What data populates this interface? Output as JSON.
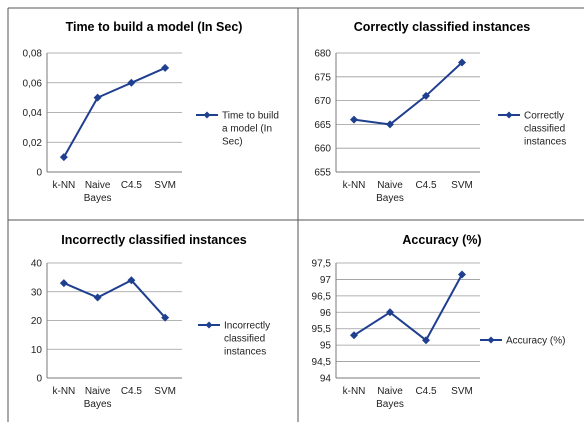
{
  "chart_data": [
    {
      "type": "line",
      "title": "Time to build a model (In Sec)",
      "categories": [
        "k-NN",
        "Naive\nBayes",
        "C4.5",
        "SVM"
      ],
      "series": [
        {
          "name": "Time to build a model (In Sec)",
          "values": [
            0.01,
            0.05,
            0.06,
            0.07
          ]
        }
      ],
      "ylim": [
        0,
        0.08
      ],
      "yticks": [
        "0",
        "0,02",
        "0,04",
        "0,06",
        "0,08"
      ],
      "legend_lines": [
        "Time to build",
        "a model (In",
        "Sec)"
      ],
      "grid": true,
      "legend": "right",
      "color": "#1f3f8f"
    },
    {
      "type": "line",
      "title": "Correctly classified instances",
      "categories": [
        "k-NN",
        "Naive\nBayes",
        "C4.5",
        "SVM"
      ],
      "series": [
        {
          "name": "Correctly classified instances",
          "values": [
            666,
            665,
            671,
            678
          ]
        }
      ],
      "ylim": [
        655,
        680
      ],
      "yticks": [
        "655",
        "660",
        "665",
        "670",
        "675",
        "680"
      ],
      "legend_lines": [
        "Correctly",
        "classified",
        "instances"
      ],
      "grid": true,
      "legend": "right",
      "color": "#1f3f8f"
    },
    {
      "type": "line",
      "title": "Incorrectly classified instances",
      "categories": [
        "k-NN",
        "Naive\nBayes",
        "C4.5",
        "SVM"
      ],
      "series": [
        {
          "name": "Incorrectly classified instances",
          "values": [
            33,
            28,
            34,
            21
          ]
        }
      ],
      "ylim": [
        0,
        40
      ],
      "yticks": [
        "0",
        "10",
        "20",
        "30",
        "40"
      ],
      "legend_lines": [
        "Incorrectly",
        "classified",
        "instances"
      ],
      "grid": true,
      "legend": "right",
      "color": "#1f3f8f"
    },
    {
      "type": "line",
      "title": "Accuracy (%)",
      "categories": [
        "k-NN",
        "Naive\nBayes",
        "C4.5",
        "SVM"
      ],
      "series": [
        {
          "name": "Accuracy (%)",
          "values": [
            95.3,
            96.0,
            95.15,
            97.15
          ]
        }
      ],
      "ylim": [
        94,
        97.5
      ],
      "yticks": [
        "94",
        "94,5",
        "95",
        "95,5",
        "96",
        "96,5",
        "97",
        "97,5"
      ],
      "legend_lines": [
        "Accuracy (%)"
      ],
      "grid": true,
      "legend": "right",
      "color": "#1f3f8f"
    }
  ]
}
